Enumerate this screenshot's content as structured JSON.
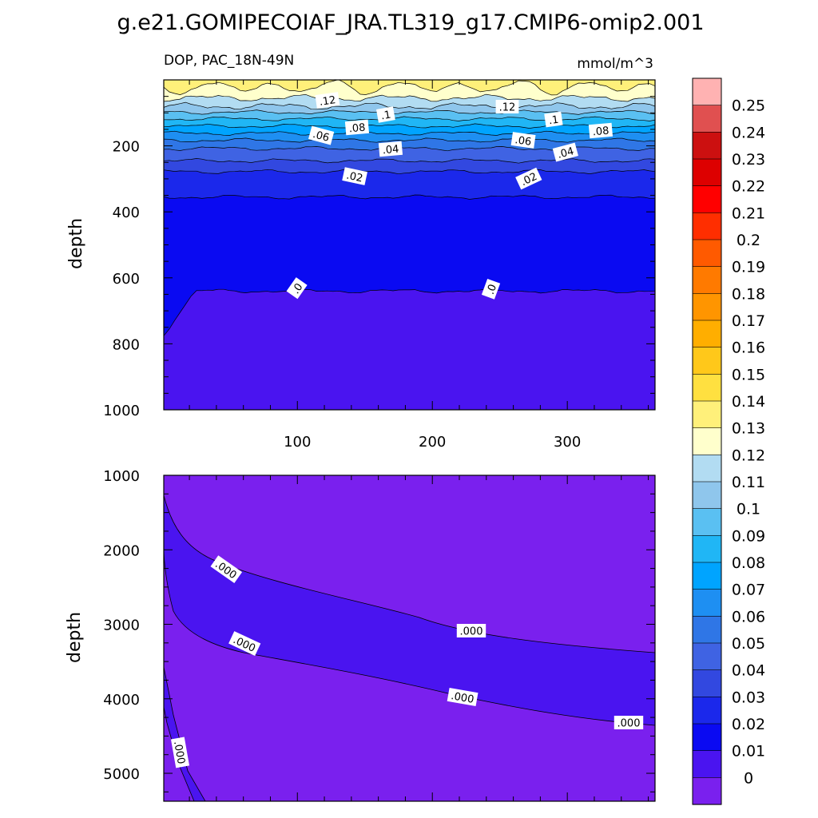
{
  "chart_data": [
    {
      "type": "heatmap",
      "title": "g.e21.GOMIPECOIAF_JRA.TL319_g17.CMIP6-omip2.001",
      "subtitle_left": "DOP, PAC_18N-49N",
      "subtitle_right": "mmol/m^3",
      "ylabel": "depth",
      "xlabel": "",
      "xlim": [
        1,
        365
      ],
      "ylim": [
        1000,
        0
      ],
      "x_ticks": [
        "100",
        "200",
        "300"
      ],
      "y_ticks": [
        "200",
        "400",
        "600",
        "800",
        "1000"
      ],
      "contour_depths": [
        {
          "level": 0.12,
          "depth": 22
        },
        {
          "level": 0.11,
          "depth": 55
        },
        {
          "level": 0.1,
          "depth": 80
        },
        {
          "level": 0.09,
          "depth": 98
        },
        {
          "level": 0.08,
          "depth": 118
        },
        {
          "level": 0.07,
          "depth": 140
        },
        {
          "level": 0.06,
          "depth": 162
        },
        {
          "level": 0.05,
          "depth": 183
        },
        {
          "level": 0.04,
          "depth": 208
        },
        {
          "level": 0.03,
          "depth": 245
        },
        {
          "level": 0.02,
          "depth": 278
        },
        {
          "level": 0.01,
          "depth": 355
        },
        {
          "level": 0.0,
          "depth": 640
        }
      ],
      "contour_labels": [
        ".12",
        ".12",
        ".1",
        ".1",
        ".08",
        ".08",
        ".06",
        ".06",
        ".04",
        ".04",
        ".02",
        ".02",
        ".0",
        ".0"
      ]
    },
    {
      "type": "heatmap",
      "title": "",
      "ylabel": "depth",
      "xlabel": "",
      "xlim": [
        1,
        365
      ],
      "ylim": [
        5375,
        1000
      ],
      "y_ticks": [
        "1000",
        "2000",
        "3000",
        "4000",
        "5000"
      ],
      "contour_labels": [
        ".000",
        ".000",
        ".000",
        ".000",
        ".000",
        ".000"
      ]
    }
  ],
  "colorbar": {
    "labels": [
      "0.25",
      "0.24",
      "0.23",
      "0.22",
      "0.21",
      "0.2",
      "0.19",
      "0.18",
      "0.17",
      "0.16",
      "0.15",
      "0.14",
      "0.13",
      "0.12",
      "0.11",
      "0.1",
      "0.09",
      "0.08",
      "0.07",
      "0.06",
      "0.05",
      "0.04",
      "0.03",
      "0.02",
      "0.01",
      "0"
    ],
    "colors": [
      "#FFB2B2",
      "#E05050",
      "#CC1010",
      "#DD0000",
      "#FF0000",
      "#FF2E00",
      "#FF5A00",
      "#FF7A00",
      "#FF9500",
      "#FFAE00",
      "#FFC81A",
      "#FFE040",
      "#FFF07A",
      "#FFFFCC",
      "#B2DCF2",
      "#8FC6EC",
      "#5AC0F2",
      "#20B6F5",
      "#00A4FF",
      "#1E8FF2",
      "#2F76E6",
      "#3F63E3",
      "#3248E0",
      "#1B28EB",
      "#0A0AF2",
      "#4A14F0",
      "#7A20EE"
    ]
  }
}
